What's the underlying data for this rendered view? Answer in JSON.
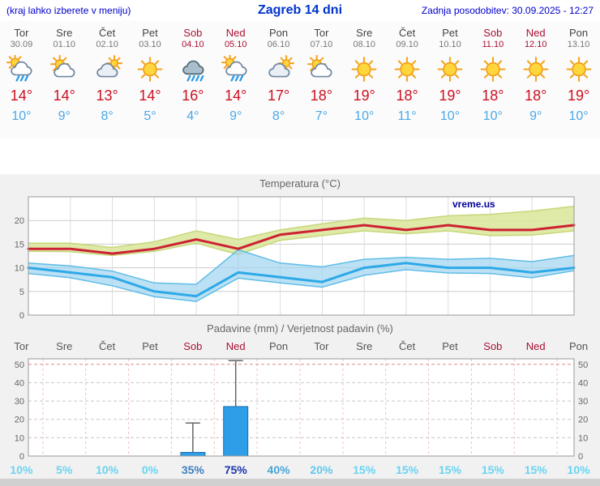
{
  "header": {
    "left_note": "(kraj lahko izberete v meniju)",
    "title": "Zagreb 14 dni",
    "updated": "Zadnja posodobitev: 30.09.2025 - 12:27"
  },
  "colors": {
    "accent_blue": "#0000cc",
    "title_blue": "#0033cc",
    "high_temp_red": "#cc1122",
    "low_temp_blue": "#4aa8e8",
    "weekend_red": "#aa1133",
    "bar_blue": "#2f9ee8",
    "watermark_blue": "#000099"
  },
  "days": [
    {
      "name": "Tor",
      "date": "30.09",
      "weekend": false,
      "icon": "sun-rain",
      "high": "14°",
      "low": "10°"
    },
    {
      "name": "Sre",
      "date": "01.10",
      "weekend": false,
      "icon": "sun-cloud",
      "high": "14°",
      "low": "9°"
    },
    {
      "name": "Čet",
      "date": "02.10",
      "weekend": false,
      "icon": "cloud-sun",
      "high": "13°",
      "low": "8°"
    },
    {
      "name": "Pet",
      "date": "03.10",
      "weekend": false,
      "icon": "sun",
      "high": "14°",
      "low": "5°"
    },
    {
      "name": "Sob",
      "date": "04.10",
      "weekend": true,
      "icon": "rain",
      "high": "16°",
      "low": "4°"
    },
    {
      "name": "Ned",
      "date": "05.10",
      "weekend": true,
      "icon": "sun-rain",
      "high": "14°",
      "low": "9°"
    },
    {
      "name": "Pon",
      "date": "06.10",
      "weekend": false,
      "icon": "cloud-sun",
      "high": "17°",
      "low": "8°"
    },
    {
      "name": "Tor",
      "date": "07.10",
      "weekend": false,
      "icon": "sun-cloud",
      "high": "18°",
      "low": "7°"
    },
    {
      "name": "Sre",
      "date": "08.10",
      "weekend": false,
      "icon": "sun",
      "high": "19°",
      "low": "10°"
    },
    {
      "name": "Čet",
      "date": "09.10",
      "weekend": false,
      "icon": "sun",
      "high": "18°",
      "low": "11°"
    },
    {
      "name": "Pet",
      "date": "10.10",
      "weekend": false,
      "icon": "sun",
      "high": "19°",
      "low": "10°"
    },
    {
      "name": "Sob",
      "date": "11.10",
      "weekend": true,
      "icon": "sun",
      "high": "18°",
      "low": "10°"
    },
    {
      "name": "Ned",
      "date": "12.10",
      "weekend": true,
      "icon": "sun",
      "high": "18°",
      "low": "9°"
    },
    {
      "name": "Pon",
      "date": "13.10",
      "weekend": false,
      "icon": "sun",
      "high": "19°",
      "low": "10°"
    }
  ],
  "chart_data": [
    {
      "type": "line",
      "title": "Temperatura (°C)",
      "watermark": "vreme.us",
      "x_labels": [
        "Tor 30.09",
        "Sre 01.10",
        "Čet 02.10",
        "Pet 03.10",
        "Sob 04.10",
        "Ned 05.10",
        "Pon 06.10",
        "Tor 07.10",
        "Sre 08.10",
        "Čet 09.10",
        "Pet 10.10",
        "Sob 11.10",
        "Ned 12.10",
        "Pon 13.10"
      ],
      "ylim": [
        0,
        25
      ],
      "yticks": [
        0,
        5,
        10,
        15,
        20
      ],
      "grid": true,
      "legend": "none",
      "series": [
        {
          "name": "max temperature",
          "color": "#cc2233",
          "values": [
            14,
            14,
            13,
            14,
            16,
            14,
            17,
            18,
            19,
            18,
            19,
            18,
            18,
            19
          ]
        },
        {
          "name": "min temperature",
          "color": "#2da9e8",
          "values": [
            10,
            9,
            8,
            5,
            4,
            9,
            8,
            7,
            10,
            11,
            10,
            10,
            9,
            10
          ]
        }
      ],
      "bands": [
        {
          "name": "max temperature range",
          "color": "#dbe79e",
          "edge": "#c6d87a",
          "opacity": 0.9,
          "upper": [
            15.2,
            15.2,
            14.3,
            15.5,
            17.8,
            16.0,
            18.0,
            19.3,
            20.5,
            20.0,
            21.0,
            21.3,
            22.0,
            23.0
          ],
          "lower": [
            13.5,
            13.4,
            12.6,
            13.5,
            15.2,
            12.8,
            15.8,
            16.8,
            17.8,
            17.2,
            17.8,
            16.8,
            16.9,
            17.8
          ]
        },
        {
          "name": "min temperature range",
          "color": "#9fd4ef",
          "edge": "#5fbde8",
          "opacity": 0.7,
          "upper": [
            11.0,
            10.4,
            9.3,
            6.8,
            6.5,
            13.8,
            11.0,
            10.2,
            11.8,
            12.2,
            11.8,
            12.0,
            11.3,
            12.6
          ],
          "lower": [
            8.8,
            7.9,
            6.2,
            3.9,
            2.9,
            7.8,
            6.8,
            5.9,
            8.4,
            9.6,
            8.9,
            8.8,
            7.9,
            9.4
          ]
        }
      ]
    },
    {
      "type": "bar",
      "title": "Padavine (mm) / Verjetnost padavin (%)",
      "x_labels": [
        "Tor",
        "Sre",
        "Čet",
        "Pet",
        "Sob",
        "Ned",
        "Pon",
        "Tor",
        "Sre",
        "Čet",
        "Pet",
        "Sob",
        "Ned",
        "Pon"
      ],
      "weekend": [
        false,
        false,
        false,
        false,
        true,
        true,
        false,
        false,
        false,
        false,
        false,
        true,
        true,
        false
      ],
      "ylim": [
        0,
        53
      ],
      "yticks": [
        0,
        10,
        20,
        30,
        40,
        50
      ],
      "precip_mm": [
        0,
        0,
        0,
        0,
        2,
        27,
        0,
        0,
        0,
        0,
        0,
        0,
        0,
        0
      ],
      "precip_max_mm": [
        0,
        0,
        0,
        0,
        18,
        52,
        0,
        0,
        0,
        0,
        0,
        0,
        0,
        0
      ],
      "probability": [
        {
          "label": "10%",
          "color": "#68d4f2"
        },
        {
          "label": "5%",
          "color": "#68d4f2"
        },
        {
          "label": "10%",
          "color": "#68d4f2"
        },
        {
          "label": "0%",
          "color": "#68d4f2"
        },
        {
          "label": "35%",
          "color": "#3d7fc1"
        },
        {
          "label": "75%",
          "color": "#1a35b0"
        },
        {
          "label": "40%",
          "color": "#45a6d8"
        },
        {
          "label": "20%",
          "color": "#5cc8ee"
        },
        {
          "label": "15%",
          "color": "#68d4f2"
        },
        {
          "label": "15%",
          "color": "#68d4f2"
        },
        {
          "label": "15%",
          "color": "#68d4f2"
        },
        {
          "label": "15%",
          "color": "#68d4f2"
        },
        {
          "label": "15%",
          "color": "#68d4f2"
        },
        {
          "label": "10%",
          "color": "#68d4f2"
        }
      ]
    }
  ]
}
